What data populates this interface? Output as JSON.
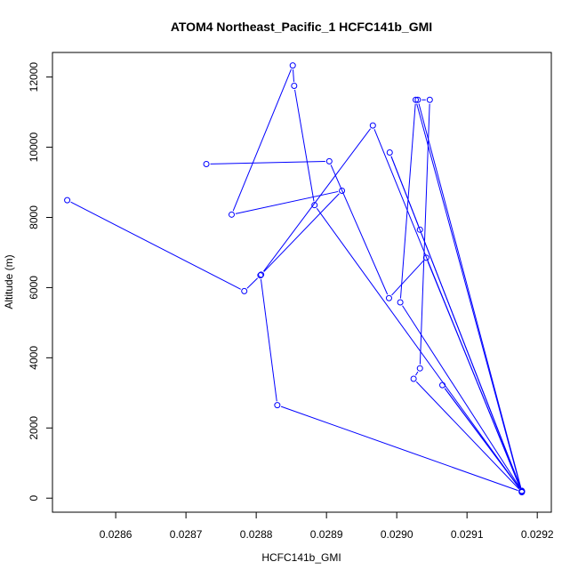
{
  "chart_data": {
    "type": "line",
    "title": "ATOM4 Northeast_Pacific_1 HCFC141b_GMI",
    "xlabel": "HCFC141b_GMI",
    "ylabel": "Altitude (m)",
    "xlim": [
      0.02851,
      0.02922
    ],
    "ylim": [
      -400,
      12700
    ],
    "xticks": [
      0.0286,
      0.0287,
      0.0288,
      0.0289,
      0.029,
      0.0291,
      0.0292
    ],
    "xtick_labels": [
      "0.0286",
      "0.0287",
      "0.0288",
      "0.0289",
      "0.0290",
      "0.0291",
      "0.0292"
    ],
    "yticks": [
      0,
      2000,
      4000,
      6000,
      8000,
      10000,
      12000
    ],
    "ytick_labels": [
      "0",
      "2000",
      "4000",
      "6000",
      "8000",
      "10000",
      "12000"
    ],
    "grid": false,
    "series": [
      {
        "color": "#0000ff",
        "marker": "open-circle",
        "x": [
          0.028531,
          0.028783,
          0.028806,
          0.02883,
          0.029178,
          0.029024,
          0.029033,
          0.029047,
          0.02903,
          0.029178,
          0.029065,
          0.029178,
          0.029033,
          0.02899,
          0.029178,
          0.029005,
          0.029027,
          0.029178,
          0.028966,
          0.028807,
          0.028922,
          0.028765,
          0.028852,
          0.028854,
          0.028883,
          0.029178,
          0.029042,
          0.028989,
          0.028904,
          0.028729
        ],
        "y": [
          8490,
          5900,
          6350,
          2650,
          180,
          3400,
          3700,
          11350,
          11350,
          200,
          3220,
          190,
          7650,
          9850,
          210,
          5580,
          11350,
          170,
          10620,
          6370,
          8760,
          8080,
          12330,
          11750,
          8350,
          190,
          6850,
          5700,
          9600,
          9520
        ]
      }
    ]
  }
}
